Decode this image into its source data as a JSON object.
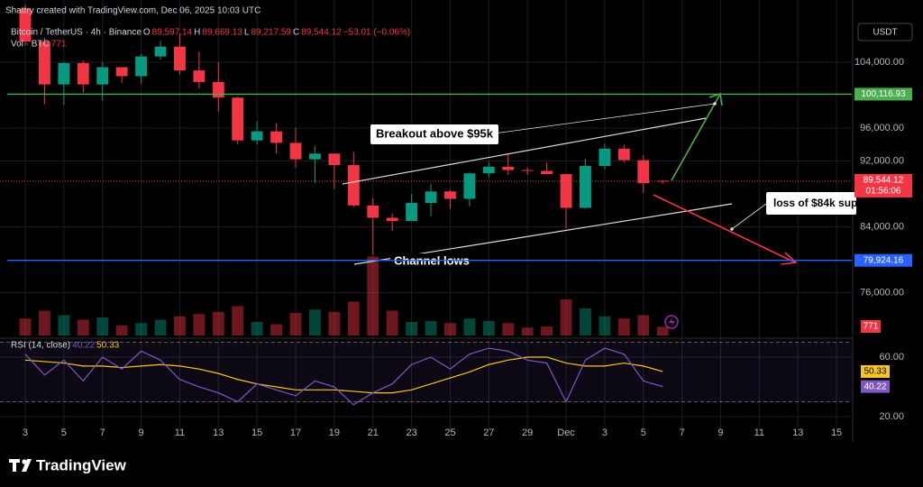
{
  "credit": "Shattry created with TradingView.com, Dec 06, 2025 10:03 UTC",
  "brand": "TradingView",
  "annotations": {
    "breakout": "Breakout above $95k",
    "channel_lows": "Channel lows",
    "loss": "loss of $84k sup"
  },
  "chart_data": {
    "type": "candlestick",
    "title": "Bitcoin / TetherUS · 4h · Binance",
    "legend": [
      {
        "key": "O",
        "value": "89,597.14"
      },
      {
        "key": "H",
        "value": "89,669.13"
      },
      {
        "key": "L",
        "value": "89,217.59"
      },
      {
        "key": "C",
        "value": "89,544.12"
      }
    ],
    "change": "−53.01 (−0.06%)",
    "currency": "USDT",
    "up_color": "#089981",
    "down_color": "#f23645",
    "x": [
      0,
      1,
      2,
      3,
      4,
      5,
      6,
      7,
      8,
      9,
      10,
      11,
      12,
      13,
      14,
      15,
      16,
      17,
      18,
      19,
      20,
      21,
      22,
      23,
      24,
      25,
      26,
      27,
      28,
      29,
      30,
      31,
      32,
      33
    ],
    "xlim": [
      -0.933,
      42.79
    ],
    "xticks": [
      {
        "value": 0,
        "label": "3"
      },
      {
        "value": 2,
        "label": "5"
      },
      {
        "value": 4,
        "label": "7"
      },
      {
        "value": 6,
        "label": "9"
      },
      {
        "value": 8,
        "label": "11"
      },
      {
        "value": 10,
        "label": "13"
      },
      {
        "value": 12,
        "label": "15"
      },
      {
        "value": 14,
        "label": "17"
      },
      {
        "value": 16,
        "label": "19"
      },
      {
        "value": 18,
        "label": "21"
      },
      {
        "value": 20,
        "label": "23"
      },
      {
        "value": 22,
        "label": "25"
      },
      {
        "value": 24,
        "label": "27"
      },
      {
        "value": 26,
        "label": "29"
      },
      {
        "value": 28,
        "label": "Dec"
      },
      {
        "value": 30,
        "label": "3"
      },
      {
        "value": 32,
        "label": "5"
      },
      {
        "value": 34,
        "label": "7"
      },
      {
        "value": 36,
        "label": "9"
      },
      {
        "value": 38,
        "label": "11"
      },
      {
        "value": 40,
        "label": "13"
      },
      {
        "value": 42,
        "label": "15"
      }
    ],
    "open": [
      110500,
      106500,
      101300,
      103900,
      101300,
      103400,
      102300,
      104700,
      105900,
      103000,
      101600,
      99700,
      94500,
      95600,
      94200,
      92200,
      92900,
      91500,
      86600,
      85100,
      84700,
      86900,
      88300,
      87400,
      90500,
      91300,
      90900,
      90800,
      90400,
      86300,
      91400,
      93500,
      92100,
      89597.14
    ],
    "high": [
      111000,
      107000,
      104000,
      104200,
      104000,
      103400,
      105000,
      106600,
      107500,
      105300,
      104000,
      99800,
      96800,
      96600,
      96000,
      93800,
      92900,
      93100,
      87500,
      85600,
      88000,
      89200,
      88500,
      90600,
      91900,
      92900,
      91200,
      91800,
      90400,
      92300,
      94100,
      94000,
      92700,
      89669.13
    ],
    "low": [
      106000,
      98900,
      98800,
      100300,
      99300,
      101500,
      101400,
      104300,
      102500,
      100800,
      98000,
      94000,
      94000,
      92900,
      91200,
      89300,
      88600,
      86400,
      80600,
      83500,
      84700,
      85300,
      86200,
      86500,
      90000,
      90300,
      90300,
      90400,
      83800,
      86200,
      91000,
      91800,
      88100,
      89217.59
    ],
    "close": [
      106500,
      101300,
      103900,
      101300,
      103400,
      102300,
      104700,
      105900,
      103000,
      101600,
      99700,
      94500,
      95600,
      94200,
      92200,
      92900,
      91500,
      86600,
      85100,
      84700,
      86900,
      88300,
      87400,
      90500,
      91300,
      90900,
      90800,
      90400,
      86300,
      91400,
      93500,
      92100,
      89300,
      89544.12
    ],
    "ylim": [
      70795,
      111562
    ],
    "yticks": [
      {
        "value": 76000,
        "label": "76,000.00"
      },
      {
        "value": 84000,
        "label": "84,000.00"
      },
      {
        "value": 92000,
        "label": "92,000.00"
      },
      {
        "value": 96000,
        "label": "96,000.00"
      },
      {
        "value": 104000,
        "label": "104,000.00"
      }
    ],
    "volume_title": "Vol · BTC",
    "volume": [
      1500,
      2200,
      1800,
      1400,
      1600,
      900,
      1100,
      1400,
      1700,
      1900,
      2100,
      2600,
      1200,
      1000,
      2000,
      2300,
      2100,
      3000,
      7000,
      2200,
      1200,
      1300,
      1100,
      1500,
      1300,
      1100,
      700,
      800,
      3200,
      2400,
      1700,
      1500,
      1800,
      771
    ],
    "volume_lim": [
      0,
      8000
    ],
    "hlines": [
      {
        "value": 100116.93,
        "label": "100,116.93",
        "color": "#4caf50"
      },
      {
        "value": 79924.16,
        "label": "79,924.16",
        "color": "#2962ff"
      }
    ],
    "last_price": {
      "value": 89544.12,
      "label": "89,544.12",
      "countdown": "01:56:06",
      "color": "#f23645"
    },
    "rsi": {
      "title": "RSI (14, close)",
      "color": "#7e57c2",
      "ma_color": "#f7c51e",
      "values": [
        62,
        48,
        58,
        44,
        60,
        52,
        64,
        58,
        45,
        40,
        36,
        30,
        42,
        38,
        34,
        44,
        40,
        28,
        36,
        42,
        55,
        60,
        52,
        62,
        66,
        64,
        58,
        56,
        30,
        58,
        66,
        62,
        44,
        40.22
      ],
      "ma": [
        58,
        57,
        56,
        54,
        54,
        53,
        54,
        55,
        54,
        52,
        49,
        45,
        42,
        40,
        38,
        38,
        38,
        37,
        36,
        36,
        38,
        42,
        46,
        50,
        55,
        58,
        60,
        60,
        56,
        54,
        54,
        56,
        54,
        50.33
      ],
      "ylim": [
        10.3,
        70.9
      ],
      "yticks": [
        {
          "value": 20,
          "label": "20.00"
        },
        {
          "value": 60,
          "label": "60.00"
        }
      ],
      "bands": [
        30,
        70
      ]
    }
  }
}
